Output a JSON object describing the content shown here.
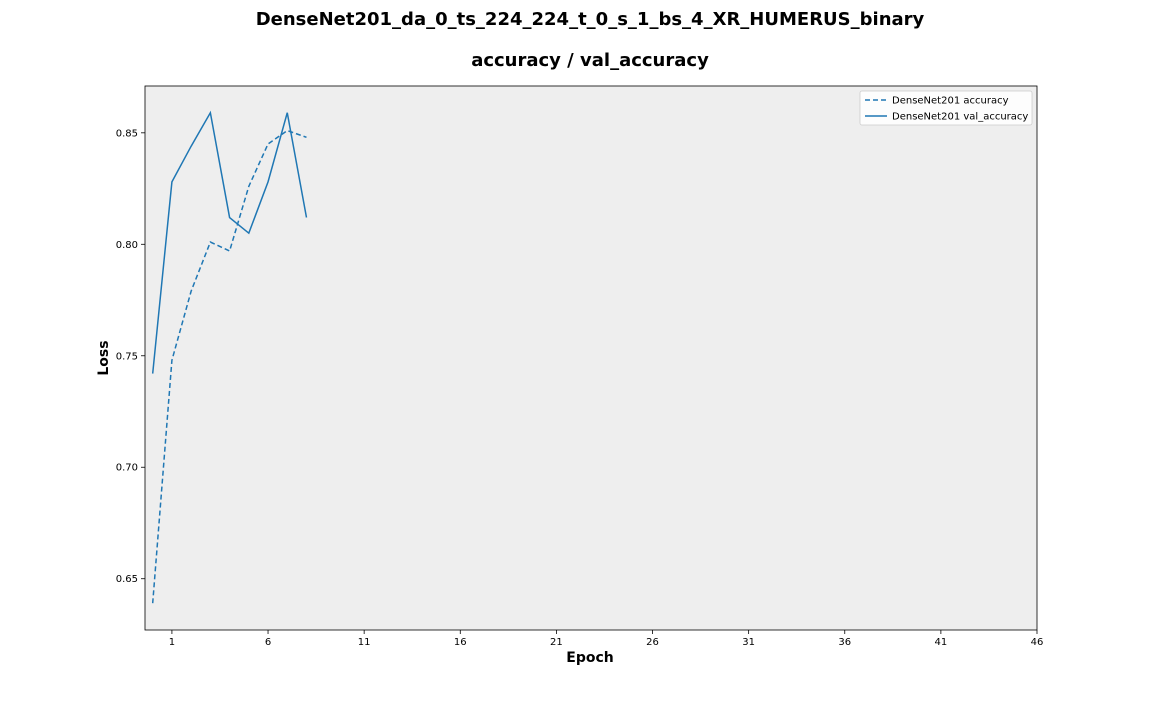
{
  "chart_data": {
    "type": "line",
    "title": "DenseNet201_da_0_ts_224_224_t_0_s_1_bs_4_XR_HUMERUS_binary",
    "subtitle": "accuracy / val_accuracy",
    "xlabel": "Epoch",
    "ylabel": "Loss",
    "xlim": [
      -0.4,
      46
    ],
    "ylim": [
      0.627,
      0.871
    ],
    "xticks": [
      1,
      6,
      11,
      16,
      21,
      26,
      31,
      36,
      41,
      46
    ],
    "yticks": [
      0.65,
      0.7,
      0.75,
      0.8,
      0.85
    ],
    "ytick_labels": [
      "0.65",
      "0.70",
      "0.75",
      "0.80",
      "0.85"
    ],
    "grid": false,
    "legend_position": "top-right",
    "background": "#eeeeee",
    "x": [
      0,
      1,
      2,
      3,
      4,
      5,
      6,
      7,
      8
    ],
    "series": [
      {
        "name": "DenseNet201 accuracy",
        "style": "dashed",
        "color": "#1f77b4",
        "values": [
          0.639,
          0.748,
          0.779,
          0.801,
          0.797,
          0.826,
          0.845,
          0.851,
          0.848
        ]
      },
      {
        "name": "DenseNet201 val_accuracy",
        "style": "solid",
        "color": "#1f77b4",
        "values": [
          0.742,
          0.828,
          0.844,
          0.859,
          0.812,
          0.805,
          0.828,
          0.859,
          0.812
        ]
      }
    ]
  }
}
